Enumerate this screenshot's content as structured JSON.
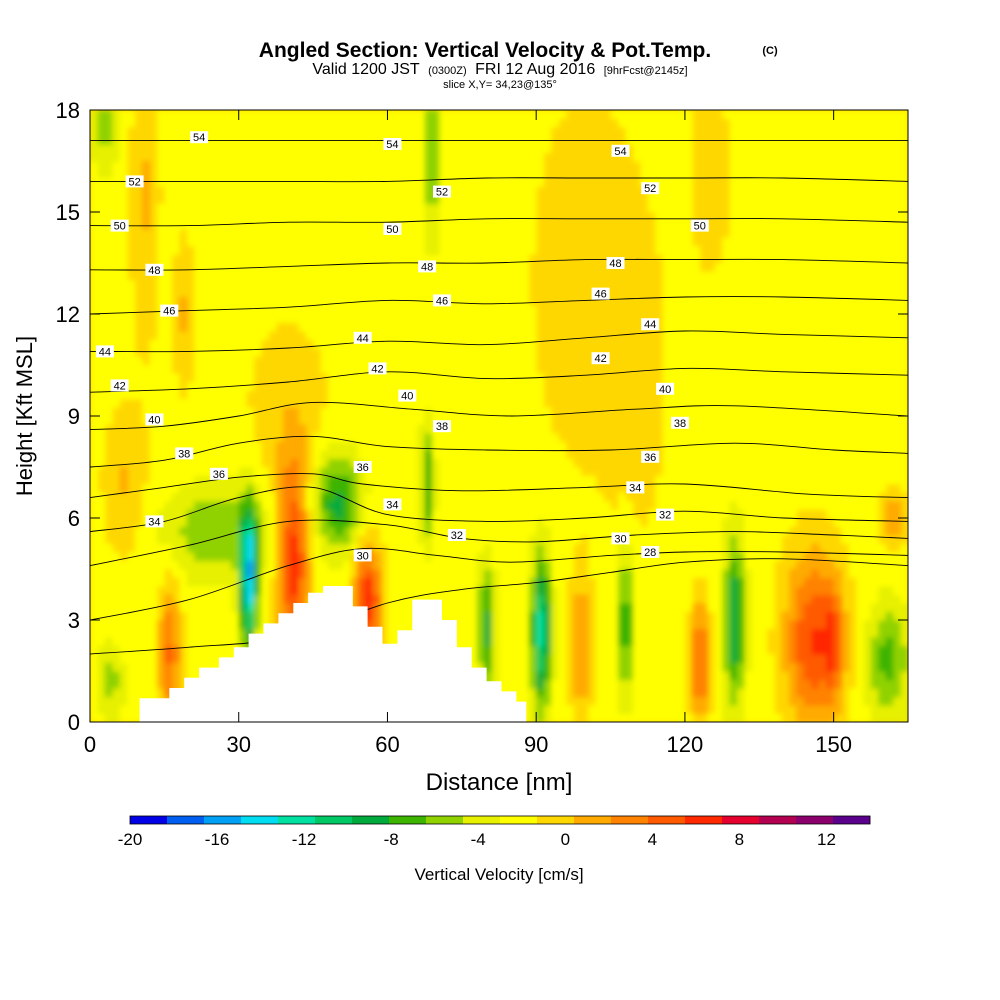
{
  "header": {
    "title": "Angled Section: Vertical Velocity & Pot.Temp.",
    "copyright": "(C)",
    "valid_prefix": "Valid 1200 JST",
    "valid_utc": "(0300Z)",
    "valid_date": "FRI 12 Aug 2016",
    "forecast": "[9hrFcst@2145z]",
    "slice": "slice X,Y= 34,23@135°"
  },
  "chart_data": {
    "type": "heatmap",
    "title": "Angled Section: Vertical Velocity & Pot.Temp.",
    "xlabel": "Distance [nm]",
    "ylabel": "Height [Kft MSL]",
    "xlim": [
      0,
      165
    ],
    "ylim": [
      0,
      18
    ],
    "x_ticks": [
      "0",
      "30",
      "60",
      "90",
      "120",
      "150"
    ],
    "y_ticks": [
      "0",
      "3",
      "6",
      "9",
      "12",
      "15",
      "18"
    ],
    "grid": false,
    "colorbar": {
      "label": "Vertical Velocity [cm/s]",
      "tick_labels": [
        "-20",
        "-16",
        "-12",
        "-8",
        "-4",
        "0",
        "4",
        "8",
        "12"
      ],
      "min": -20,
      "max": 14,
      "step": 2,
      "colors": [
        "#0000e6",
        "#005ff0",
        "#00a0f5",
        "#00dcf0",
        "#00e0a0",
        "#00c864",
        "#00aa3c",
        "#3cb400",
        "#90d200",
        "#e6f000",
        "#ffff00",
        "#ffd700",
        "#ffaa00",
        "#ff8200",
        "#ff5a00",
        "#ff2800",
        "#e6002d",
        "#b40050",
        "#8c006e",
        "#5a008c"
      ]
    },
    "terrain": {
      "x": [
        10,
        10,
        16,
        16,
        19,
        19,
        22,
        22,
        26,
        26,
        29,
        29,
        32,
        32,
        35,
        35,
        38,
        38,
        41,
        41,
        44,
        44,
        47,
        47,
        53,
        53,
        56,
        56,
        59,
        59,
        62,
        62,
        65,
        65,
        71,
        71,
        74,
        74,
        77,
        77,
        80,
        80,
        83,
        83,
        86,
        86,
        88,
        88
      ],
      "y": [
        0,
        0.7,
        0.7,
        1.0,
        1.0,
        1.3,
        1.3,
        1.6,
        1.6,
        1.9,
        1.9,
        2.2,
        2.2,
        2.6,
        2.6,
        2.9,
        2.9,
        3.2,
        3.2,
        3.5,
        3.5,
        3.8,
        3.8,
        4.0,
        4.0,
        3.4,
        3.4,
        2.8,
        2.8,
        2.3,
        2.3,
        2.7,
        2.7,
        3.6,
        3.6,
        3.0,
        3.0,
        2.2,
        2.2,
        1.6,
        1.6,
        1.2,
        1.2,
        0.9,
        0.9,
        0.6,
        0.6,
        0.4
      ]
    },
    "velocity_features": [
      {
        "x": 32,
        "y": 4.2,
        "sx": 1.2,
        "sy": 1.5,
        "value": -14
      },
      {
        "x": 41,
        "y": 4.8,
        "sx": 2.2,
        "sy": 2.0,
        "value": 10
      },
      {
        "x": 50,
        "y": 6.5,
        "sx": 3.5,
        "sy": 1.0,
        "value": -8
      },
      {
        "x": 56,
        "y": 3.6,
        "sx": 2.0,
        "sy": 1.2,
        "value": 10
      },
      {
        "x": 16,
        "y": 2.0,
        "sx": 1.5,
        "sy": 1.5,
        "value": 7
      },
      {
        "x": 26,
        "y": 5.6,
        "sx": 8.0,
        "sy": 1.0,
        "value": -5
      },
      {
        "x": 80,
        "y": 2.8,
        "sx": 1.2,
        "sy": 1.3,
        "value": -8
      },
      {
        "x": 91,
        "y": 2.7,
        "sx": 1.4,
        "sy": 1.6,
        "value": -12
      },
      {
        "x": 99,
        "y": 2.2,
        "sx": 1.5,
        "sy": 1.5,
        "value": 5
      },
      {
        "x": 108,
        "y": 3.0,
        "sx": 1.2,
        "sy": 1.6,
        "value": -7
      },
      {
        "x": 123,
        "y": 1.8,
        "sx": 1.3,
        "sy": 1.2,
        "value": 8
      },
      {
        "x": 130,
        "y": 3.0,
        "sx": 1.5,
        "sy": 1.8,
        "value": -9
      },
      {
        "x": 146,
        "y": 2.4,
        "sx": 4.0,
        "sy": 1.8,
        "value": 9
      },
      {
        "x": 150,
        "y": 2.4,
        "sx": 1.2,
        "sy": 1.0,
        "value": 5
      },
      {
        "x": 161,
        "y": 1.8,
        "sx": 3.0,
        "sy": 1.2,
        "value": -6
      },
      {
        "x": 68,
        "y": 7.0,
        "sx": 1.0,
        "sy": 1.2,
        "value": -7
      },
      {
        "x": 69,
        "y": 17.0,
        "sx": 1.2,
        "sy": 2.0,
        "value": -6
      },
      {
        "x": 11,
        "y": 15.5,
        "sx": 2.0,
        "sy": 3.0,
        "value": 3
      },
      {
        "x": 19,
        "y": 12.0,
        "sx": 1.5,
        "sy": 1.5,
        "value": 3
      },
      {
        "x": 3,
        "y": 17.5,
        "sx": 2.0,
        "sy": 1.0,
        "value": -4
      },
      {
        "x": 100,
        "y": 13.0,
        "sx": 8.0,
        "sy": 4.0,
        "value": 2
      },
      {
        "x": 125,
        "y": 16.0,
        "sx": 3.0,
        "sy": 2.0,
        "value": 2
      },
      {
        "x": 7,
        "y": 7.0,
        "sx": 3.0,
        "sy": 1.5,
        "value": 3
      },
      {
        "x": 162,
        "y": 6.0,
        "sx": 1.5,
        "sy": 0.6,
        "value": 5
      },
      {
        "x": 4,
        "y": 1.2,
        "sx": 2.0,
        "sy": 0.8,
        "value": -4
      },
      {
        "x": 110,
        "y": 10.0,
        "sx": 4.0,
        "sy": 3.0,
        "value": 2
      },
      {
        "x": 40,
        "y": 9.0,
        "sx": 6.0,
        "sy": 2.0,
        "value": 2
      }
    ],
    "isentropes": [
      {
        "label": "28",
        "x": [
          0,
          20,
          40,
          60,
          75,
          90,
          105,
          120,
          140,
          165
        ],
        "y": [
          2.0,
          2.2,
          2.5,
          3.5,
          3.9,
          4.1,
          4.4,
          4.7,
          4.8,
          4.6
        ]
      },
      {
        "label": "30",
        "x": [
          0,
          20,
          40,
          55,
          70,
          85,
          105,
          120,
          140,
          165
        ],
        "y": [
          3.0,
          3.6,
          4.6,
          5.1,
          4.9,
          4.7,
          4.9,
          5.0,
          5.0,
          4.9
        ]
      },
      {
        "label": "32",
        "x": [
          0,
          20,
          40,
          60,
          75,
          90,
          110,
          130,
          150,
          165
        ],
        "y": [
          4.6,
          5.2,
          5.9,
          5.8,
          5.4,
          5.3,
          5.5,
          5.6,
          5.5,
          5.4
        ]
      },
      {
        "label": "34",
        "x": [
          0,
          15,
          30,
          45,
          60,
          80,
          100,
          120,
          140,
          165
        ],
        "y": [
          5.6,
          5.9,
          6.6,
          6.9,
          6.1,
          5.9,
          6.0,
          6.2,
          6.0,
          5.9
        ]
      },
      {
        "label": "36",
        "x": [
          0,
          15,
          30,
          45,
          55,
          75,
          100,
          120,
          145,
          165
        ],
        "y": [
          6.6,
          6.9,
          7.2,
          7.3,
          7.0,
          6.8,
          6.9,
          7.0,
          6.7,
          6.6
        ]
      },
      {
        "label": "38",
        "x": [
          0,
          15,
          30,
          45,
          60,
          80,
          105,
          130,
          150,
          165
        ],
        "y": [
          7.5,
          7.7,
          8.2,
          8.4,
          8.1,
          8.0,
          8.0,
          8.2,
          8.0,
          7.9
        ]
      },
      {
        "label": "40",
        "x": [
          0,
          15,
          30,
          45,
          65,
          85,
          110,
          130,
          165
        ],
        "y": [
          8.6,
          8.7,
          9.0,
          9.4,
          9.2,
          9.0,
          9.2,
          9.3,
          9.0
        ]
      },
      {
        "label": "42",
        "x": [
          0,
          20,
          40,
          60,
          80,
          100,
          120,
          140,
          165
        ],
        "y": [
          9.7,
          9.8,
          10.0,
          10.3,
          10.1,
          10.2,
          10.4,
          10.3,
          10.2
        ]
      },
      {
        "label": "44",
        "x": [
          0,
          20,
          40,
          60,
          80,
          100,
          120,
          140,
          165
        ],
        "y": [
          10.9,
          10.9,
          11.0,
          11.2,
          11.1,
          11.3,
          11.5,
          11.4,
          11.3
        ]
      },
      {
        "label": "46",
        "x": [
          0,
          20,
          40,
          60,
          80,
          100,
          120,
          140,
          165
        ],
        "y": [
          12.0,
          12.1,
          12.2,
          12.4,
          12.3,
          12.4,
          12.5,
          12.5,
          12.4
        ]
      },
      {
        "label": "48",
        "x": [
          0,
          20,
          40,
          60,
          80,
          100,
          120,
          140,
          165
        ],
        "y": [
          13.3,
          13.3,
          13.4,
          13.5,
          13.5,
          13.6,
          13.6,
          13.6,
          13.5
        ]
      },
      {
        "label": "50",
        "x": [
          0,
          20,
          40,
          60,
          80,
          100,
          120,
          140,
          165
        ],
        "y": [
          14.6,
          14.6,
          14.7,
          14.7,
          14.8,
          14.8,
          14.8,
          14.8,
          14.7
        ]
      },
      {
        "label": "52",
        "x": [
          0,
          20,
          40,
          60,
          80,
          100,
          120,
          140,
          165
        ],
        "y": [
          15.9,
          15.9,
          15.9,
          15.9,
          16.0,
          16.0,
          16.0,
          16.0,
          15.9
        ]
      },
      {
        "label": "54",
        "x": [
          0,
          20,
          40,
          60,
          80,
          100,
          120,
          140,
          165
        ],
        "y": [
          17.1,
          17.1,
          17.1,
          17.1,
          17.1,
          17.1,
          17.1,
          17.1,
          17.1
        ]
      }
    ],
    "contour_labels": [
      {
        "text": "54",
        "x": 22,
        "y": 17.2
      },
      {
        "text": "54",
        "x": 61,
        "y": 17.0
      },
      {
        "text": "54",
        "x": 107,
        "y": 16.8
      },
      {
        "text": "52",
        "x": 9,
        "y": 15.9
      },
      {
        "text": "52",
        "x": 71,
        "y": 15.6
      },
      {
        "text": "52",
        "x": 113,
        "y": 15.7
      },
      {
        "text": "50",
        "x": 6,
        "y": 14.6
      },
      {
        "text": "50",
        "x": 61,
        "y": 14.5
      },
      {
        "text": "50",
        "x": 123,
        "y": 14.6
      },
      {
        "text": "48",
        "x": 13,
        "y": 13.3
      },
      {
        "text": "48",
        "x": 68,
        "y": 13.4
      },
      {
        "text": "48",
        "x": 106,
        "y": 13.5
      },
      {
        "text": "46",
        "x": 16,
        "y": 12.1
      },
      {
        "text": "46",
        "x": 71,
        "y": 12.4
      },
      {
        "text": "46",
        "x": 103,
        "y": 12.6
      },
      {
        "text": "44",
        "x": 3,
        "y": 10.9
      },
      {
        "text": "44",
        "x": 55,
        "y": 11.3
      },
      {
        "text": "44",
        "x": 113,
        "y": 11.7
      },
      {
        "text": "42",
        "x": 6,
        "y": 9.9
      },
      {
        "text": "42",
        "x": 58,
        "y": 10.4
      },
      {
        "text": "42",
        "x": 103,
        "y": 10.7
      },
      {
        "text": "40",
        "x": 13,
        "y": 8.9
      },
      {
        "text": "40",
        "x": 64,
        "y": 9.6
      },
      {
        "text": "40",
        "x": 116,
        "y": 9.8
      },
      {
        "text": "38",
        "x": 19,
        "y": 7.9
      },
      {
        "text": "38",
        "x": 71,
        "y": 8.7
      },
      {
        "text": "38",
        "x": 119,
        "y": 8.8
      },
      {
        "text": "36",
        "x": 26,
        "y": 7.3
      },
      {
        "text": "36",
        "x": 55,
        "y": 7.5
      },
      {
        "text": "36",
        "x": 113,
        "y": 7.8
      },
      {
        "text": "34",
        "x": 13,
        "y": 5.9
      },
      {
        "text": "34",
        "x": 61,
        "y": 6.4
      },
      {
        "text": "34",
        "x": 110,
        "y": 6.9
      },
      {
        "text": "32",
        "x": 74,
        "y": 5.5
      },
      {
        "text": "32",
        "x": 116,
        "y": 6.1
      },
      {
        "text": "30",
        "x": 55,
        "y": 4.9
      },
      {
        "text": "30",
        "x": 107,
        "y": 5.4
      },
      {
        "text": "28",
        "x": 113,
        "y": 5.0
      }
    ]
  }
}
